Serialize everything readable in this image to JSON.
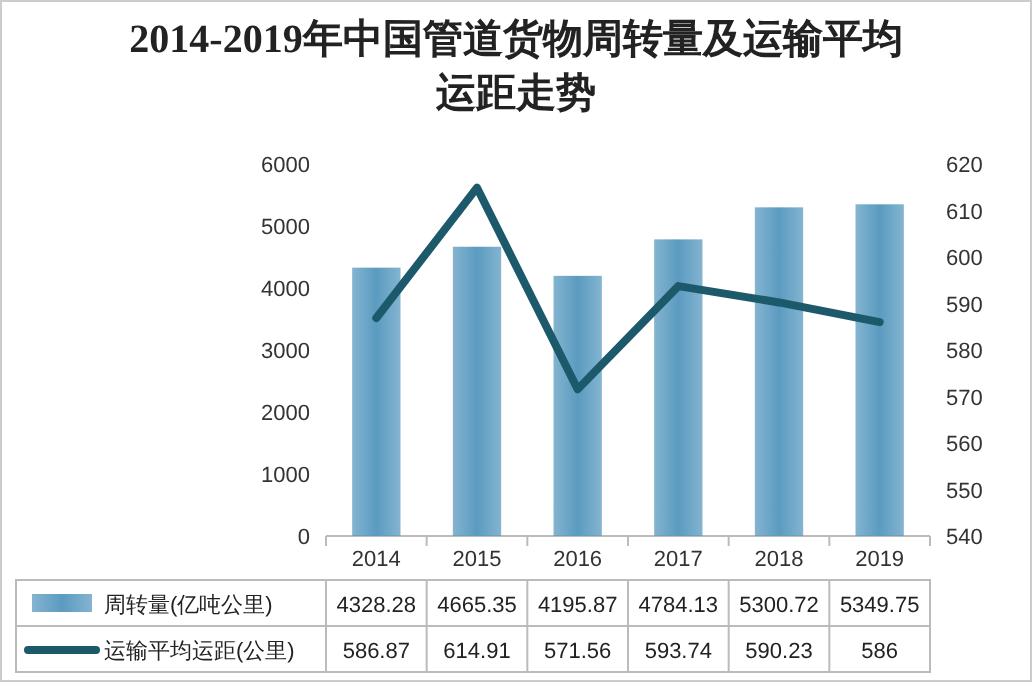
{
  "chart_data": {
    "type": "bar",
    "title": "2014-2019年中国管道货物周转量及运输平均运距走势",
    "categories": [
      "2014",
      "2015",
      "2016",
      "2017",
      "2018",
      "2019"
    ],
    "series": [
      {
        "name": "周转量(亿吨公里)",
        "color": "#5b9bc0",
        "values": [
          4328.28,
          4665.35,
          4195.87,
          4784.13,
          5300.72,
          5349.75
        ]
      },
      {
        "name": "运输平均运距(公里)",
        "type": "line",
        "axis": "y2",
        "color": "#1c5a6b",
        "values": [
          586.87,
          614.91,
          571.56,
          593.74,
          590.23,
          586
        ]
      }
    ],
    "ylim": [
      0,
      6000
    ],
    "yticks": [
      0,
      1000,
      2000,
      3000,
      4000,
      5000,
      6000
    ],
    "y2lim": [
      540,
      620
    ],
    "y2ticks": [
      540,
      550,
      560,
      570,
      580,
      590,
      600,
      610,
      620
    ],
    "data_labels": true,
    "legend": "bottom"
  }
}
